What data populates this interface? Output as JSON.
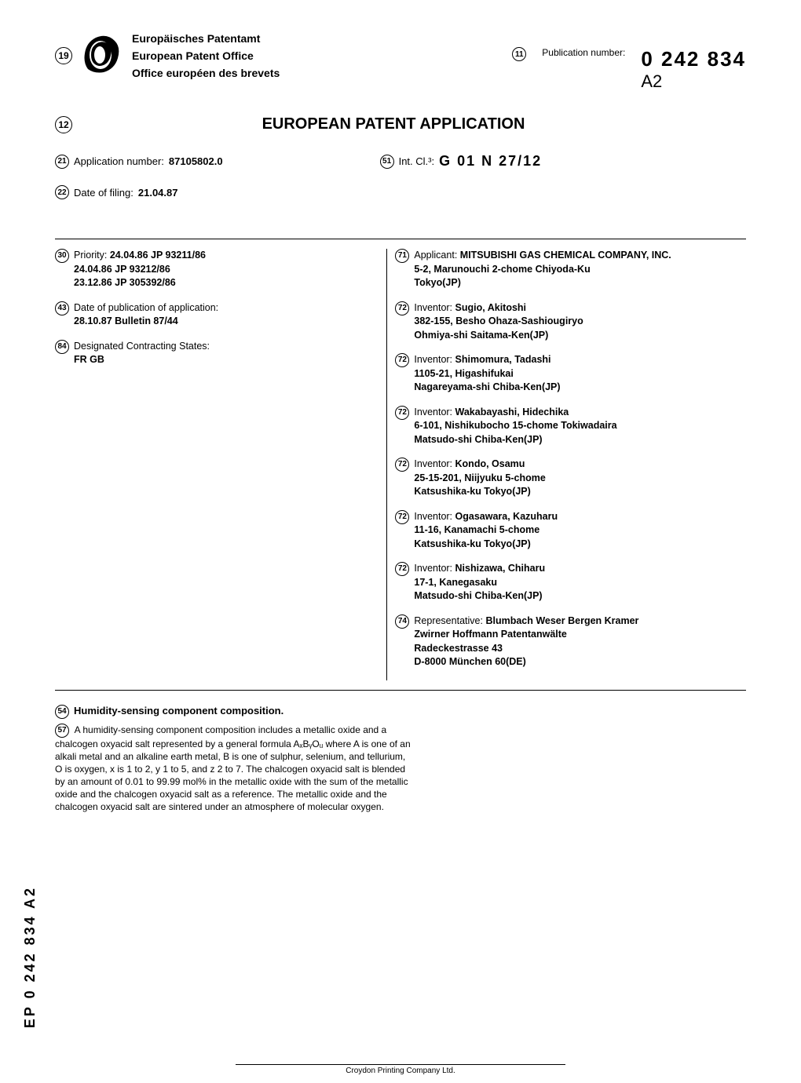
{
  "header": {
    "num19": "19",
    "office_line1": "Europäisches Patentamt",
    "office_line2": "European Patent Office",
    "office_line3": "Office européen des brevets",
    "num11": "11",
    "pub_label": "Publication number:",
    "pub_number": "0  242  834",
    "pub_suffix": "A2"
  },
  "title_row": {
    "num12": "12",
    "title": "EUROPEAN PATENT APPLICATION"
  },
  "meta": {
    "num21": "21",
    "app_label": "Application number:",
    "app_value": "87105802.0",
    "num51": "51",
    "intcl_label": "Int. Cl.³:",
    "intcl_value": "G  01  N  27/12",
    "num22": "22",
    "filing_label": "Date of filing:",
    "filing_value": "21.04.87"
  },
  "left": {
    "num30": "30",
    "priority_label": "Priority:",
    "priority_lines": [
      "24.04.86  JP  93211/86",
      "24.04.86  JP  93212/86",
      "23.12.86  JP  305392/86"
    ],
    "num43": "43",
    "pubapp_label": "Date of publication of application:",
    "pubapp_value": "28.10.87  Bulletin  87/44",
    "num84": "84",
    "states_label": "Designated Contracting States:",
    "states_value": "FR  GB"
  },
  "right": {
    "num71": "71",
    "applicant_label": "Applicant:",
    "applicant_name": "MITSUBISHI GAS CHEMICAL COMPANY, INC.",
    "applicant_addr1": "5-2, Marunouchi 2-chome Chiyoda-Ku",
    "applicant_addr2": "Tokyo(JP)",
    "num72": "72",
    "inventor_label": "Inventor:",
    "inventors": [
      {
        "name": "Sugio, Akitoshi",
        "addr1": "382-155, Besho Ohaza-Sashiougiryo",
        "addr2": "Ohmiya-shi Saitama-Ken(JP)"
      },
      {
        "name": "Shimomura, Tadashi",
        "addr1": "1105-21, Higashifukai",
        "addr2": "Nagareyama-shi Chiba-Ken(JP)"
      },
      {
        "name": "Wakabayashi, Hidechika",
        "addr1": "6-101, Nishikubocho 15-chome Tokiwadaira",
        "addr2": "Matsudo-shi Chiba-Ken(JP)"
      },
      {
        "name": "Kondo, Osamu",
        "addr1": "25-15-201, Niijyuku 5-chome",
        "addr2": "Katsushika-ku Tokyo(JP)"
      },
      {
        "name": "Ogasawara, Kazuharu",
        "addr1": "11-16, Kanamachi 5-chome",
        "addr2": "Katsushika-ku Tokyo(JP)"
      },
      {
        "name": "Nishizawa, Chiharu",
        "addr1": "17-1, Kanegasaku",
        "addr2": "Matsudo-shi Chiba-Ken(JP)"
      }
    ],
    "num74": "74",
    "rep_label": "Representative:",
    "rep_name": "Blumbach Weser Bergen Kramer",
    "rep_addr1": "Zwirner Hoffmann Patentanwälte",
    "rep_addr2": "Radeckestrasse 43",
    "rep_addr3": "D-8000 München 60(DE)"
  },
  "abstract": {
    "num54": "54",
    "title": "Humidity-sensing component composition.",
    "num57": "57",
    "text": "A humidity-sensing component composition includes a metallic oxide and a chalcogen oxyacid salt represented by a general formula AₓBᵧOᵤ where A is one of an alkali metal and an alkaline earth metal, B is one of sulphur, selenium, and tellurium, O is oxygen, x is 1 to 2, y 1 to 5, and z 2 to 7. The chalcogen oxyacid salt is blended by an amount of 0.01 to 99.99 mol% in the metallic oxide with the sum of the metallic oxide and the chalcogen oxyacid salt as a reference. The metallic oxide and the chalcogen oxyacid salt are sintered under an atmosphere of molecular oxygen."
  },
  "vertical_code": "EP  0  242  834  A2",
  "footer": "Croydon Printing Company Ltd.",
  "colors": {
    "text": "#000000",
    "background": "#ffffff",
    "border": "#000000"
  }
}
